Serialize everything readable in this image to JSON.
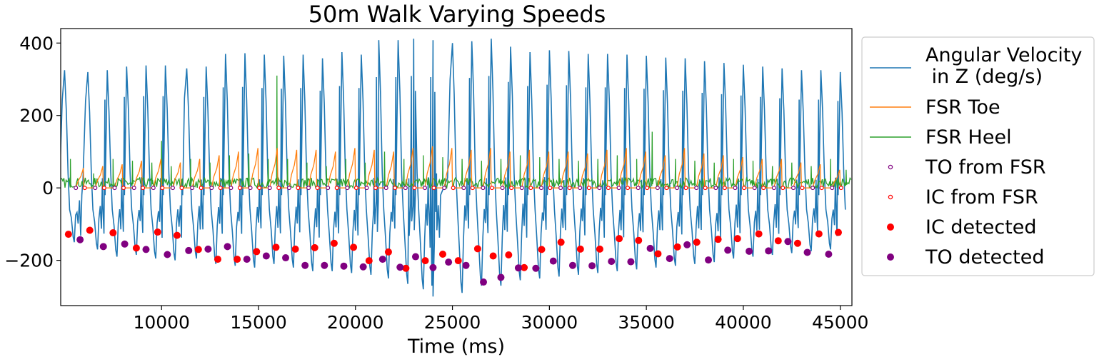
{
  "chart_data": {
    "type": "line",
    "title": "50m Walk Varying Speeds",
    "xlabel": "Time (ms)",
    "ylabel": "",
    "xlim": [
      4800,
      45600
    ],
    "ylim": [
      -325,
      440
    ],
    "xticks": [
      10000,
      15000,
      20000,
      25000,
      30000,
      35000,
      40000,
      45000
    ],
    "xtick_labels": [
      "10000",
      "15000",
      "20000",
      "25000",
      "30000",
      "35000",
      "40000",
      "45000"
    ],
    "yticks": [
      -200,
      0,
      200,
      400
    ],
    "ytick_labels": [
      "−200",
      "0",
      "200",
      "400"
    ],
    "grid": false,
    "legend_position": "outside-right",
    "colors": {
      "angular_velocity": "#1f77b4",
      "fsr_toe": "#ff7f0e",
      "fsr_heel": "#2ca02c",
      "to_marker": "#800080",
      "ic_marker": "#ff0000"
    },
    "legend": [
      {
        "key": "angular_velocity",
        "lines": [
          "Angular Velocity",
          " in Z (deg/s)"
        ],
        "kind": "line"
      },
      {
        "key": "fsr_toe",
        "lines": [
          "FSR Toe"
        ],
        "kind": "line"
      },
      {
        "key": "fsr_heel",
        "lines": [
          "FSR Heel"
        ],
        "kind": "line"
      },
      {
        "key": "to_fsr",
        "lines": [
          "TO from FSR"
        ],
        "kind": "open-marker"
      },
      {
        "key": "ic_fsr",
        "lines": [
          "IC from FSR"
        ],
        "kind": "open-marker"
      },
      {
        "key": "ic_detected",
        "lines": [
          "IC detected"
        ],
        "kind": "filled-marker"
      },
      {
        "key": "to_detected",
        "lines": [
          "TO detected"
        ],
        "kind": "filled-marker"
      }
    ],
    "angular_velocity_peaks": [
      {
        "t": 5000,
        "v": 325
      },
      {
        "t": 6200,
        "v": 320
      },
      {
        "t": 7200,
        "v": 325
      },
      {
        "t": 8200,
        "v": 335
      },
      {
        "t": 9200,
        "v": 338
      },
      {
        "t": 10200,
        "v": 338
      },
      {
        "t": 11300,
        "v": 330
      },
      {
        "t": 12300,
        "v": 335
      },
      {
        "t": 13300,
        "v": 370
      },
      {
        "t": 14300,
        "v": 372
      },
      {
        "t": 15300,
        "v": 368
      },
      {
        "t": 16300,
        "v": 365
      },
      {
        "t": 17300,
        "v": 368
      },
      {
        "t": 18300,
        "v": 358
      },
      {
        "t": 19300,
        "v": 375
      },
      {
        "t": 20300,
        "v": 368
      },
      {
        "t": 21200,
        "v": 408
      },
      {
        "t": 22200,
        "v": 408
      },
      {
        "t": 23000,
        "v": 412
      },
      {
        "t": 24000,
        "v": 408
      },
      {
        "t": 25000,
        "v": 400
      },
      {
        "t": 26000,
        "v": 405
      },
      {
        "t": 27000,
        "v": 412
      },
      {
        "t": 28000,
        "v": 390
      },
      {
        "t": 29000,
        "v": 375
      },
      {
        "t": 30000,
        "v": 380
      },
      {
        "t": 31000,
        "v": 378
      },
      {
        "t": 32000,
        "v": 370
      },
      {
        "t": 33000,
        "v": 370
      },
      {
        "t": 34000,
        "v": 368
      },
      {
        "t": 35000,
        "v": 365
      },
      {
        "t": 36000,
        "v": 360
      },
      {
        "t": 37000,
        "v": 358
      },
      {
        "t": 38000,
        "v": 350
      },
      {
        "t": 39000,
        "v": 345
      },
      {
        "t": 40000,
        "v": 340
      },
      {
        "t": 41000,
        "v": 335
      },
      {
        "t": 42000,
        "v": 330
      },
      {
        "t": 43000,
        "v": 325
      },
      {
        "t": 44000,
        "v": 325
      },
      {
        "t": 45000,
        "v": 320
      }
    ],
    "angular_velocity_troughs": [
      {
        "t": 5500,
        "v": -150
      },
      {
        "t": 6700,
        "v": -170
      },
      {
        "t": 7700,
        "v": -190
      },
      {
        "t": 8700,
        "v": -185
      },
      {
        "t": 9700,
        "v": -195
      },
      {
        "t": 10700,
        "v": -200
      },
      {
        "t": 11800,
        "v": -195
      },
      {
        "t": 12800,
        "v": -210
      },
      {
        "t": 13800,
        "v": -215
      },
      {
        "t": 14800,
        "v": -220
      },
      {
        "t": 15800,
        "v": -210
      },
      {
        "t": 16800,
        "v": -220
      },
      {
        "t": 17800,
        "v": -230
      },
      {
        "t": 18800,
        "v": -230
      },
      {
        "t": 19800,
        "v": -235
      },
      {
        "t": 20800,
        "v": -240
      },
      {
        "t": 21700,
        "v": -250
      },
      {
        "t": 22700,
        "v": -265
      },
      {
        "t": 23500,
        "v": -280
      },
      {
        "t": 24000,
        "v": -300
      },
      {
        "t": 25500,
        "v": -290
      },
      {
        "t": 26500,
        "v": -270
      },
      {
        "t": 27500,
        "v": -270
      },
      {
        "t": 28500,
        "v": -255
      },
      {
        "t": 29500,
        "v": -250
      },
      {
        "t": 30500,
        "v": -245
      },
      {
        "t": 31500,
        "v": -240
      },
      {
        "t": 32500,
        "v": -235
      },
      {
        "t": 33500,
        "v": -230
      },
      {
        "t": 34500,
        "v": -225
      },
      {
        "t": 35500,
        "v": -220
      },
      {
        "t": 36500,
        "v": -215
      },
      {
        "t": 37500,
        "v": -210
      },
      {
        "t": 38500,
        "v": -205
      },
      {
        "t": 39500,
        "v": -195
      },
      {
        "t": 40500,
        "v": -190
      },
      {
        "t": 41500,
        "v": -185
      },
      {
        "t": 42500,
        "v": -180
      },
      {
        "t": 43500,
        "v": -175
      },
      {
        "t": 44500,
        "v": -170
      }
    ],
    "fsr_toe_peaks": [
      {
        "t": 6000,
        "v": 55
      },
      {
        "t": 7000,
        "v": 60
      },
      {
        "t": 8000,
        "v": 65
      },
      {
        "t": 9000,
        "v": 75
      },
      {
        "t": 10000,
        "v": 80
      },
      {
        "t": 11000,
        "v": 70
      },
      {
        "t": 12000,
        "v": 80
      },
      {
        "t": 13000,
        "v": 90
      },
      {
        "t": 14000,
        "v": 100
      },
      {
        "t": 15000,
        "v": 110
      },
      {
        "t": 16000,
        "v": 110
      },
      {
        "t": 17000,
        "v": 105
      },
      {
        "t": 18000,
        "v": 105
      },
      {
        "t": 19000,
        "v": 100
      },
      {
        "t": 20000,
        "v": 110
      },
      {
        "t": 21000,
        "v": 105
      },
      {
        "t": 22000,
        "v": 100
      },
      {
        "t": 23000,
        "v": 110
      },
      {
        "t": 24000,
        "v": 115
      },
      {
        "t": 25000,
        "v": 110
      },
      {
        "t": 26000,
        "v": 105
      },
      {
        "t": 27000,
        "v": 110
      },
      {
        "t": 28000,
        "v": 100
      },
      {
        "t": 29000,
        "v": 105
      },
      {
        "t": 30000,
        "v": 100
      },
      {
        "t": 31000,
        "v": 100
      },
      {
        "t": 32000,
        "v": 95
      },
      {
        "t": 33000,
        "v": 105
      },
      {
        "t": 34000,
        "v": 110
      },
      {
        "t": 35000,
        "v": 100
      },
      {
        "t": 36000,
        "v": 90
      },
      {
        "t": 37000,
        "v": 110
      },
      {
        "t": 38000,
        "v": 95
      },
      {
        "t": 39000,
        "v": 90
      },
      {
        "t": 40000,
        "v": 85
      },
      {
        "t": 41000,
        "v": 80
      },
      {
        "t": 42000,
        "v": 80
      },
      {
        "t": 43000,
        "v": 70
      },
      {
        "t": 44000,
        "v": 65
      },
      {
        "t": 45000,
        "v": 50
      }
    ],
    "fsr_heel_peaks": [
      {
        "t": 5300,
        "v": 80
      },
      {
        "t": 6500,
        "v": 40
      },
      {
        "t": 7500,
        "v": 80
      },
      {
        "t": 8500,
        "v": 75
      },
      {
        "t": 9500,
        "v": 70
      },
      {
        "t": 10000,
        "v": 130
      },
      {
        "t": 10500,
        "v": 60
      },
      {
        "t": 11500,
        "v": 80
      },
      {
        "t": 12500,
        "v": 70
      },
      {
        "t": 13500,
        "v": 90
      },
      {
        "t": 14500,
        "v": 95
      },
      {
        "t": 15500,
        "v": 80
      },
      {
        "t": 15950,
        "v": 310
      },
      {
        "t": 16500,
        "v": 80
      },
      {
        "t": 17500,
        "v": 70
      },
      {
        "t": 18500,
        "v": 60
      },
      {
        "t": 19500,
        "v": 80
      },
      {
        "t": 20500,
        "v": 70
      },
      {
        "t": 21500,
        "v": 100
      },
      {
        "t": 22500,
        "v": 80
      },
      {
        "t": 23500,
        "v": 90
      },
      {
        "t": 24500,
        "v": 85
      },
      {
        "t": 25500,
        "v": 80
      },
      {
        "t": 26500,
        "v": 75
      },
      {
        "t": 27500,
        "v": 80
      },
      {
        "t": 28500,
        "v": 90
      },
      {
        "t": 29500,
        "v": 85
      },
      {
        "t": 30500,
        "v": 80
      },
      {
        "t": 31500,
        "v": 75
      },
      {
        "t": 32500,
        "v": 80
      },
      {
        "t": 33500,
        "v": 90
      },
      {
        "t": 34500,
        "v": 80
      },
      {
        "t": 35300,
        "v": 155
      },
      {
        "t": 36500,
        "v": 80
      },
      {
        "t": 37500,
        "v": 75
      },
      {
        "t": 38500,
        "v": 70
      },
      {
        "t": 39500,
        "v": 80
      },
      {
        "t": 40500,
        "v": 75
      },
      {
        "t": 41500,
        "v": 60
      },
      {
        "t": 42500,
        "v": 70
      },
      {
        "t": 43500,
        "v": 60
      },
      {
        "t": 44500,
        "v": 80
      },
      {
        "t": 45300,
        "v": 50
      }
    ],
    "ic_detected": [
      {
        "t": 5200,
        "v": -128
      },
      {
        "t": 6300,
        "v": -117
      },
      {
        "t": 7500,
        "v": -124
      },
      {
        "t": 8700,
        "v": -166
      },
      {
        "t": 9800,
        "v": -122
      },
      {
        "t": 10800,
        "v": -131
      },
      {
        "t": 11900,
        "v": -170
      },
      {
        "t": 12900,
        "v": -197
      },
      {
        "t": 13900,
        "v": -197
      },
      {
        "t": 14900,
        "v": -176
      },
      {
        "t": 15900,
        "v": -164
      },
      {
        "t": 16900,
        "v": -169
      },
      {
        "t": 17900,
        "v": -165
      },
      {
        "t": 18900,
        "v": -153
      },
      {
        "t": 19900,
        "v": -164
      },
      {
        "t": 20700,
        "v": -201
      },
      {
        "t": 21700,
        "v": -177
      },
      {
        "t": 22600,
        "v": -222
      },
      {
        "t": 23600,
        "v": -201
      },
      {
        "t": 24500,
        "v": -183
      },
      {
        "t": 25300,
        "v": -201
      },
      {
        "t": 26300,
        "v": -168
      },
      {
        "t": 27100,
        "v": -188
      },
      {
        "t": 27900,
        "v": -185
      },
      {
        "t": 28700,
        "v": -220
      },
      {
        "t": 29600,
        "v": -170
      },
      {
        "t": 30600,
        "v": -150
      },
      {
        "t": 31600,
        "v": -169
      },
      {
        "t": 32600,
        "v": -169
      },
      {
        "t": 33600,
        "v": -140
      },
      {
        "t": 34600,
        "v": -145
      },
      {
        "t": 35600,
        "v": -182
      },
      {
        "t": 36600,
        "v": -163
      },
      {
        "t": 37600,
        "v": -150
      },
      {
        "t": 38700,
        "v": -142
      },
      {
        "t": 39700,
        "v": -140
      },
      {
        "t": 40800,
        "v": -127
      },
      {
        "t": 41800,
        "v": -146
      },
      {
        "t": 42800,
        "v": -153
      },
      {
        "t": 43900,
        "v": -127
      },
      {
        "t": 44900,
        "v": -123
      }
    ],
    "to_detected": [
      {
        "t": 5800,
        "v": -143
      },
      {
        "t": 7000,
        "v": -162
      },
      {
        "t": 8100,
        "v": -155
      },
      {
        "t": 9200,
        "v": -170
      },
      {
        "t": 10300,
        "v": -184
      },
      {
        "t": 11400,
        "v": -173
      },
      {
        "t": 12400,
        "v": -169
      },
      {
        "t": 13400,
        "v": -162
      },
      {
        "t": 14400,
        "v": -197
      },
      {
        "t": 15400,
        "v": -188
      },
      {
        "t": 16400,
        "v": -193
      },
      {
        "t": 17400,
        "v": -214
      },
      {
        "t": 18400,
        "v": -214
      },
      {
        "t": 19400,
        "v": -216
      },
      {
        "t": 20400,
        "v": -218
      },
      {
        "t": 21400,
        "v": -197
      },
      {
        "t": 22300,
        "v": -219
      },
      {
        "t": 23100,
        "v": -190
      },
      {
        "t": 24000,
        "v": -220
      },
      {
        "t": 24800,
        "v": -205
      },
      {
        "t": 25700,
        "v": -214
      },
      {
        "t": 26600,
        "v": -260
      },
      {
        "t": 27500,
        "v": -247
      },
      {
        "t": 28400,
        "v": -221
      },
      {
        "t": 29300,
        "v": -222
      },
      {
        "t": 30200,
        "v": -202
      },
      {
        "t": 31200,
        "v": -214
      },
      {
        "t": 32200,
        "v": -215
      },
      {
        "t": 33200,
        "v": -203
      },
      {
        "t": 34200,
        "v": -204
      },
      {
        "t": 35200,
        "v": -167
      },
      {
        "t": 36200,
        "v": -195
      },
      {
        "t": 37100,
        "v": -157
      },
      {
        "t": 38200,
        "v": -199
      },
      {
        "t": 39200,
        "v": -172
      },
      {
        "t": 40300,
        "v": -175
      },
      {
        "t": 41300,
        "v": -174
      },
      {
        "t": 42300,
        "v": -148
      },
      {
        "t": 43300,
        "v": -178
      },
      {
        "t": 44400,
        "v": -183
      }
    ]
  }
}
